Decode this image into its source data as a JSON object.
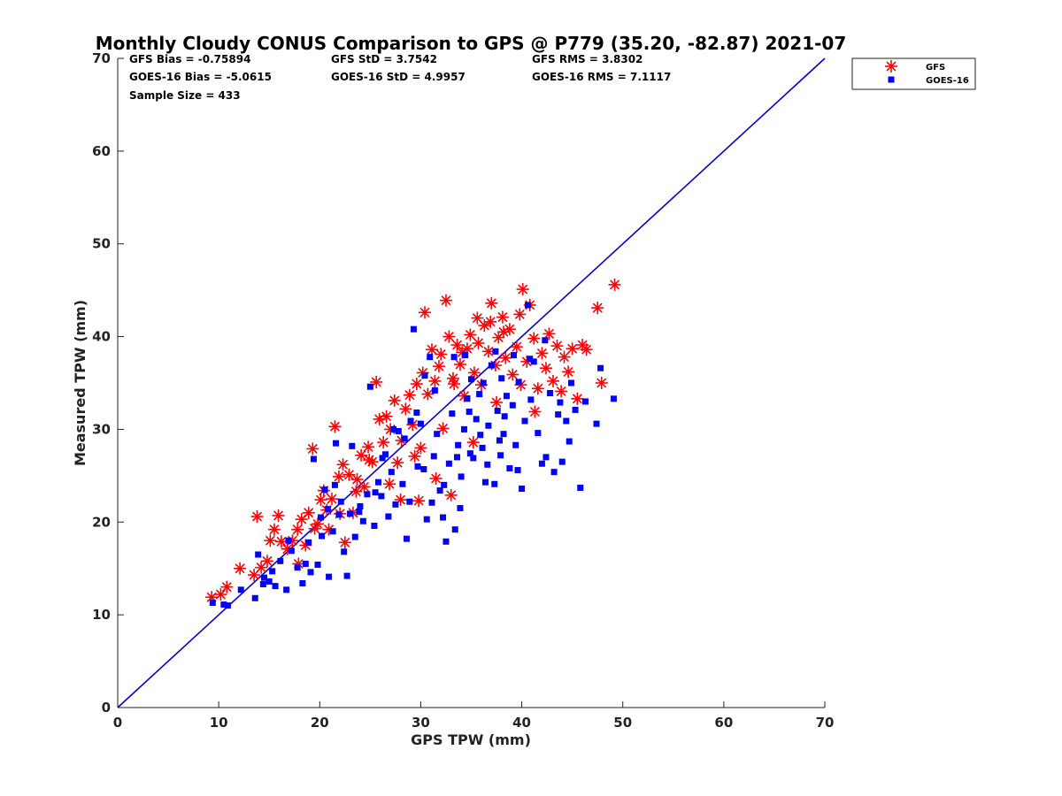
{
  "chart_data": {
    "type": "scatter",
    "title": "Monthly Cloudy CONUS Comparison to GPS @ P779 (35.20, -82.87) 2021-07",
    "xlabel": "GPS TPW (mm)",
    "ylabel": "Measured TPW (mm)",
    "xlim": [
      0,
      70
    ],
    "ylim": [
      0,
      70
    ],
    "xticks": [
      0,
      10,
      20,
      30,
      40,
      50,
      60,
      70
    ],
    "yticks": [
      0,
      10,
      20,
      30,
      40,
      50,
      60,
      70
    ],
    "grid": false,
    "legend_position": "outside-top-right",
    "reference_line": {
      "name": "1:1",
      "from": [
        0,
        0
      ],
      "to": [
        70,
        70
      ],
      "color": "#0000dd"
    },
    "stats": [
      [
        "GFS Bias = -0.75894",
        "GFS StD = 3.7542",
        "GFS RMS = 3.8302"
      ],
      [
        "GOES-16 Bias = -5.0615",
        "GOES-16 StD = 4.9957",
        "GOES-16 RMS = 7.1117"
      ],
      [
        "Sample Size = 433"
      ]
    ],
    "series": [
      {
        "name": "GFS",
        "marker": "asterisk",
        "color": "#ff0000",
        "points": [
          [
            9.3,
            11.9
          ],
          [
            10.2,
            12.2
          ],
          [
            10.8,
            13.0
          ],
          [
            12.1,
            15.0
          ],
          [
            13.5,
            14.3
          ],
          [
            13.8,
            20.6
          ],
          [
            14.2,
            15.1
          ],
          [
            14.8,
            15.8
          ],
          [
            15.1,
            18.0
          ],
          [
            15.5,
            19.2
          ],
          [
            15.9,
            20.7
          ],
          [
            16.2,
            17.9
          ],
          [
            16.8,
            17.1
          ],
          [
            17.3,
            18.0
          ],
          [
            17.8,
            19.2
          ],
          [
            18.2,
            20.3
          ],
          [
            18.6,
            17.5
          ],
          [
            18.9,
            21.0
          ],
          [
            19.3,
            27.9
          ],
          [
            19.8,
            19.8
          ],
          [
            20.1,
            22.4
          ],
          [
            20.4,
            23.4
          ],
          [
            20.7,
            21.3
          ],
          [
            21.2,
            22.5
          ],
          [
            21.5,
            30.3
          ],
          [
            21.9,
            24.9
          ],
          [
            22.3,
            26.2
          ],
          [
            22.5,
            17.8
          ],
          [
            22.9,
            25.1
          ],
          [
            23.3,
            21.0
          ],
          [
            23.7,
            24.6
          ],
          [
            24.1,
            27.2
          ],
          [
            24.4,
            23.8
          ],
          [
            24.8,
            28.1
          ],
          [
            25.2,
            26.5
          ],
          [
            25.6,
            35.1
          ],
          [
            25.9,
            31.1
          ],
          [
            26.3,
            28.6
          ],
          [
            26.6,
            31.4
          ],
          [
            27.0,
            30.0
          ],
          [
            27.4,
            33.1
          ],
          [
            27.7,
            26.4
          ],
          [
            28.1,
            28.8
          ],
          [
            28.5,
            32.2
          ],
          [
            28.9,
            33.7
          ],
          [
            29.2,
            30.5
          ],
          [
            29.6,
            34.9
          ],
          [
            30.0,
            28.0
          ],
          [
            30.4,
            42.6
          ],
          [
            30.7,
            33.8
          ],
          [
            31.1,
            38.6
          ],
          [
            31.4,
            35.2
          ],
          [
            31.8,
            36.8
          ],
          [
            32.2,
            30.1
          ],
          [
            32.5,
            43.9
          ],
          [
            32.8,
            40.0
          ],
          [
            33.2,
            35.5
          ],
          [
            33.6,
            39.1
          ],
          [
            33.9,
            37.0
          ],
          [
            34.3,
            33.6
          ],
          [
            34.6,
            38.7
          ],
          [
            34.9,
            40.2
          ],
          [
            35.3,
            36.1
          ],
          [
            35.7,
            39.3
          ],
          [
            36.0,
            34.8
          ],
          [
            36.3,
            41.2
          ],
          [
            36.7,
            38.4
          ],
          [
            37.0,
            43.6
          ],
          [
            37.4,
            36.9
          ],
          [
            37.7,
            39.9
          ],
          [
            38.1,
            42.1
          ],
          [
            38.4,
            37.7
          ],
          [
            38.8,
            40.8
          ],
          [
            39.1,
            35.9
          ],
          [
            39.5,
            38.9
          ],
          [
            39.8,
            42.4
          ],
          [
            40.1,
            45.1
          ],
          [
            40.5,
            37.3
          ],
          [
            40.8,
            43.4
          ],
          [
            41.2,
            39.8
          ],
          [
            41.6,
            34.4
          ],
          [
            42.0,
            38.2
          ],
          [
            42.4,
            36.6
          ],
          [
            42.7,
            40.3
          ],
          [
            43.1,
            35.2
          ],
          [
            43.5,
            39.0
          ],
          [
            43.9,
            34.1
          ],
          [
            44.2,
            37.8
          ],
          [
            44.6,
            36.2
          ],
          [
            45.0,
            38.7
          ],
          [
            45.5,
            33.3
          ],
          [
            46.0,
            39.1
          ],
          [
            46.4,
            38.6
          ],
          [
            47.5,
            43.1
          ],
          [
            47.9,
            35.0
          ],
          [
            49.2,
            45.6
          ],
          [
            33.0,
            22.9
          ],
          [
            31.5,
            24.7
          ],
          [
            29.8,
            22.3
          ],
          [
            28.0,
            22.4
          ],
          [
            26.9,
            24.1
          ],
          [
            35.2,
            28.6
          ],
          [
            37.5,
            32.9
          ],
          [
            39.9,
            34.8
          ],
          [
            41.3,
            31.9
          ],
          [
            38.2,
            40.5
          ],
          [
            36.9,
            41.6
          ],
          [
            35.6,
            42.0
          ],
          [
            34.1,
            38.3
          ],
          [
            33.3,
            34.9
          ],
          [
            32.0,
            38.1
          ],
          [
            30.2,
            36.1
          ],
          [
            29.4,
            27.1
          ],
          [
            24.9,
            26.7
          ],
          [
            23.6,
            23.3
          ],
          [
            22.0,
            20.9
          ],
          [
            20.9,
            19.2
          ],
          [
            19.5,
            19.3
          ],
          [
            17.9,
            15.5
          ]
        ]
      },
      {
        "name": "GOES-16",
        "marker": "square",
        "color": "#0000ff",
        "points": [
          [
            9.4,
            11.3
          ],
          [
            10.5,
            11.1
          ],
          [
            10.9,
            11.0
          ],
          [
            12.2,
            12.7
          ],
          [
            13.6,
            11.8
          ],
          [
            13.9,
            16.5
          ],
          [
            14.4,
            13.3
          ],
          [
            15.0,
            13.6
          ],
          [
            15.6,
            13.1
          ],
          [
            16.1,
            15.8
          ],
          [
            16.7,
            12.7
          ],
          [
            17.2,
            16.9
          ],
          [
            17.8,
            15.1
          ],
          [
            18.3,
            13.4
          ],
          [
            18.6,
            15.5
          ],
          [
            19.1,
            14.6
          ],
          [
            19.4,
            26.8
          ],
          [
            19.8,
            15.4
          ],
          [
            20.2,
            18.5
          ],
          [
            20.5,
            23.5
          ],
          [
            20.9,
            14.1
          ],
          [
            21.3,
            19.0
          ],
          [
            21.6,
            28.5
          ],
          [
            21.9,
            20.8
          ],
          [
            22.4,
            16.8
          ],
          [
            22.7,
            14.2
          ],
          [
            23.0,
            20.9
          ],
          [
            23.2,
            28.2
          ],
          [
            23.5,
            18.4
          ],
          [
            23.9,
            21.1
          ],
          [
            24.3,
            20.1
          ],
          [
            24.7,
            23.0
          ],
          [
            25.0,
            34.6
          ],
          [
            25.4,
            19.6
          ],
          [
            25.8,
            24.3
          ],
          [
            26.1,
            22.8
          ],
          [
            26.5,
            27.3
          ],
          [
            26.8,
            20.6
          ],
          [
            27.1,
            25.4
          ],
          [
            27.5,
            21.9
          ],
          [
            27.8,
            29.8
          ],
          [
            28.2,
            24.1
          ],
          [
            28.6,
            18.2
          ],
          [
            28.9,
            22.2
          ],
          [
            29.3,
            40.8
          ],
          [
            29.7,
            26.0
          ],
          [
            30.0,
            30.6
          ],
          [
            30.3,
            25.7
          ],
          [
            30.6,
            20.3
          ],
          [
            30.9,
            37.8
          ],
          [
            31.3,
            27.1
          ],
          [
            31.6,
            29.5
          ],
          [
            31.9,
            23.4
          ],
          [
            32.2,
            20.5
          ],
          [
            32.5,
            17.9
          ],
          [
            32.8,
            26.3
          ],
          [
            33.1,
            31.7
          ],
          [
            33.4,
            19.2
          ],
          [
            33.7,
            28.3
          ],
          [
            34.0,
            24.9
          ],
          [
            34.3,
            30.0
          ],
          [
            34.6,
            33.3
          ],
          [
            34.9,
            27.4
          ],
          [
            35.2,
            26.9
          ],
          [
            35.5,
            31.1
          ],
          [
            35.8,
            33.8
          ],
          [
            36.1,
            28.0
          ],
          [
            36.4,
            24.3
          ],
          [
            36.7,
            30.4
          ],
          [
            37.0,
            36.9
          ],
          [
            37.3,
            24.1
          ],
          [
            37.6,
            32.0
          ],
          [
            37.9,
            27.2
          ],
          [
            38.2,
            29.5
          ],
          [
            38.5,
            33.6
          ],
          [
            38.8,
            25.8
          ],
          [
            39.1,
            32.6
          ],
          [
            39.4,
            28.3
          ],
          [
            39.7,
            35.1
          ],
          [
            40.0,
            23.6
          ],
          [
            40.3,
            30.9
          ],
          [
            40.6,
            43.4
          ],
          [
            40.9,
            33.2
          ],
          [
            41.2,
            37.3
          ],
          [
            41.6,
            29.6
          ],
          [
            42.0,
            26.3
          ],
          [
            42.4,
            27.0
          ],
          [
            42.8,
            33.9
          ],
          [
            43.2,
            25.4
          ],
          [
            43.6,
            31.6
          ],
          [
            44.0,
            26.5
          ],
          [
            44.4,
            30.9
          ],
          [
            44.9,
            35.0
          ],
          [
            45.3,
            32.1
          ],
          [
            45.8,
            23.7
          ],
          [
            46.3,
            33.0
          ],
          [
            47.4,
            30.6
          ],
          [
            47.8,
            36.6
          ],
          [
            49.1,
            33.3
          ],
          [
            33.9,
            21.5
          ],
          [
            32.3,
            24.0
          ],
          [
            31.1,
            22.1
          ],
          [
            29.0,
            30.9
          ],
          [
            27.3,
            30.0
          ],
          [
            26.2,
            26.9
          ],
          [
            36.2,
            35.0
          ],
          [
            38.0,
            35.5
          ],
          [
            39.2,
            38.0
          ],
          [
            40.8,
            37.6
          ],
          [
            37.4,
            38.4
          ],
          [
            35.0,
            35.4
          ],
          [
            34.4,
            38.0
          ],
          [
            33.3,
            37.8
          ],
          [
            31.4,
            34.2
          ],
          [
            30.4,
            35.8
          ],
          [
            29.6,
            31.8
          ],
          [
            28.4,
            29.0
          ],
          [
            25.5,
            23.2
          ],
          [
            24.0,
            21.7
          ],
          [
            22.1,
            22.2
          ],
          [
            20.8,
            21.4
          ],
          [
            21.5,
            24.0
          ],
          [
            20.1,
            20.5
          ],
          [
            18.9,
            17.8
          ],
          [
            16.9,
            18.0
          ],
          [
            15.3,
            14.7
          ],
          [
            14.5,
            14.0
          ],
          [
            42.3,
            39.6
          ],
          [
            43.8,
            32.9
          ],
          [
            44.7,
            28.7
          ],
          [
            36.6,
            26.2
          ],
          [
            37.8,
            28.8
          ],
          [
            39.6,
            25.6
          ],
          [
            38.3,
            31.4
          ],
          [
            35.9,
            29.4
          ],
          [
            34.8,
            31.9
          ],
          [
            33.6,
            27.0
          ]
        ]
      }
    ]
  }
}
